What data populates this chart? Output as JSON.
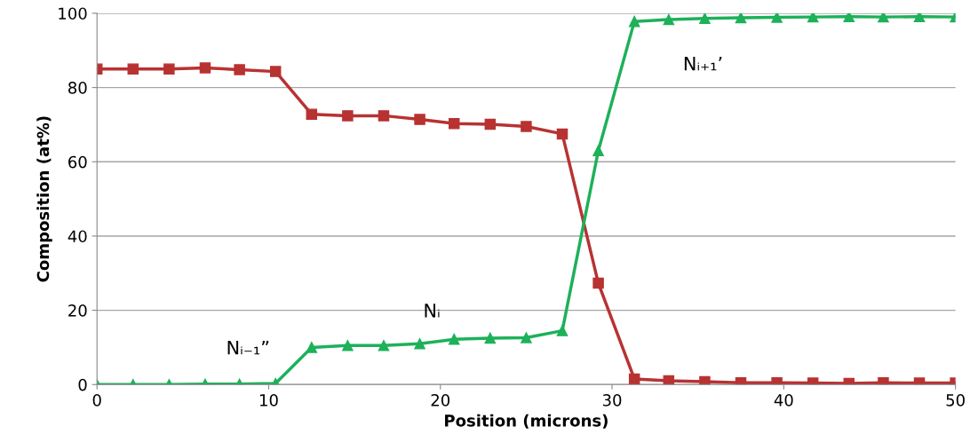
{
  "chart_data": {
    "type": "line",
    "xlabel": "Position (microns)",
    "ylabel": "Composition (at%)",
    "x": [
      0,
      2.1,
      4.2,
      6.3,
      8.3,
      10.4,
      12.5,
      14.6,
      16.7,
      18.8,
      20.8,
      22.9,
      25,
      27.1,
      29.2,
      31.3,
      33.3,
      35.4,
      37.5,
      39.6,
      41.7,
      43.8,
      45.8,
      47.9,
      50
    ],
    "series": [
      {
        "color": "#b83232",
        "marker": "square",
        "values": [
          85,
          85,
          85,
          85.3,
          84.8,
          84.3,
          72.8,
          72.4,
          72.4,
          71.4,
          70.3,
          70.1,
          69.5,
          67.5,
          27.3,
          1.5,
          1.0,
          0.8,
          0.5,
          0.5,
          0.4,
          0.3,
          0.5,
          0.4,
          0.4
        ]
      },
      {
        "color": "#1db15a",
        "marker": "triangle",
        "values": [
          0,
          0,
          0,
          0.1,
          0.1,
          0.3,
          10,
          10.5,
          10.5,
          11,
          12.2,
          12.5,
          12.6,
          14.5,
          63,
          97.8,
          98.3,
          98.6,
          98.8,
          98.9,
          99,
          99.1,
          99,
          99.1,
          99
        ]
      }
    ],
    "annotations": [
      "Nᵢ₋₁”",
      "Nᵢ",
      "Nᵢ₊₁’"
    ],
    "xlim": [
      0,
      50
    ],
    "xticks": [
      0,
      10,
      20,
      30,
      40,
      50
    ],
    "ylim": [
      0,
      100
    ],
    "yticks": [
      0,
      20,
      40,
      60,
      80,
      100
    ],
    "grid": "y",
    "legend": false,
    "line_style": "solid"
  }
}
